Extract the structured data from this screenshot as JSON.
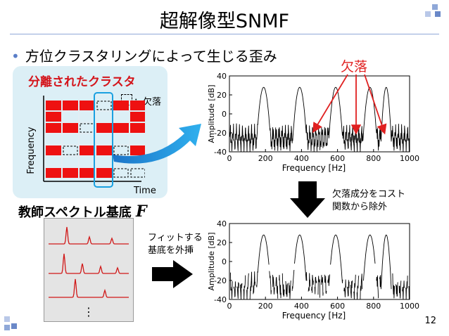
{
  "slide": {
    "title": "超解像型SNMF",
    "bullet": "方位クラスタリングによって生じる歪み",
    "page_number": "12"
  },
  "cluster_panel": {
    "title": "分離されたクラスタ",
    "legend": "：欠落",
    "y_label": "Frequency",
    "x_label": "Time",
    "rows": [
      [
        1,
        1,
        1,
        0,
        1,
        1
      ],
      [
        1,
        0,
        0,
        0,
        0,
        1
      ],
      [
        1,
        1,
        0,
        1,
        1,
        1
      ],
      [
        0,
        0,
        0,
        0,
        0,
        0
      ],
      [
        1,
        0,
        1,
        1,
        0,
        1
      ],
      [
        0,
        0,
        0,
        0,
        0,
        0
      ],
      [
        1,
        1,
        1,
        1,
        0,
        0
      ]
    ]
  },
  "missing_label": "欠落",
  "remove_text_line1": "欠落成分をコスト",
  "remove_text_line2": "関数から除外",
  "teacher_label": "教師スペクトル基底",
  "teacher_symbol": "F",
  "extrapolate_line1": "フィットする",
  "extrapolate_line2": "基底を外挿",
  "ellipsis": "⋮",
  "chart_data": [
    {
      "type": "line",
      "ylabel": "Amplitude [dB]",
      "xlabel": "Frequency [Hz]",
      "xlim": [
        0,
        1000
      ],
      "ylim": [
        -40,
        40
      ],
      "xticks": [
        "0",
        "200",
        "400",
        "600",
        "800",
        "1000"
      ],
      "yticks": [
        "40",
        "20",
        "0",
        "-20",
        "-40"
      ],
      "peaks_hz": [
        190,
        390,
        590,
        780,
        870
      ],
      "peak_db": 28
    },
    {
      "type": "line",
      "ylabel": "Amplitude [dB]",
      "xlabel": "Frequency [Hz]",
      "xlim": [
        0,
        1000
      ],
      "ylim": [
        -40,
        40
      ],
      "xticks": [
        "0",
        "200",
        "400",
        "600",
        "800",
        "1000"
      ],
      "yticks": [
        "40",
        "20",
        "0",
        "-20",
        "-40"
      ],
      "peaks_hz": [
        190,
        390,
        590,
        780,
        870
      ],
      "peak_db": 28
    }
  ]
}
